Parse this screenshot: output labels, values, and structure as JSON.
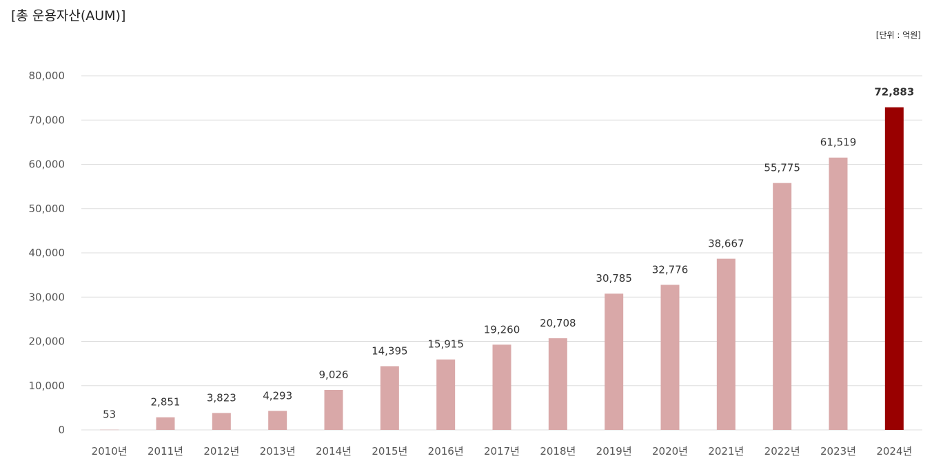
{
  "title": "[총 운용자산(AUM)]",
  "unit_note": "[단위 : 억원]",
  "chart_data": {
    "type": "bar",
    "title": "[총 운용자산(AUM)]",
    "ylabel": "",
    "xlabel": "",
    "unit": "[단위 : 억원]",
    "ylim": [
      0,
      80000
    ],
    "yticks": [
      "0",
      "10,000",
      "20,000",
      "30,000",
      "40,000",
      "50,000",
      "60,000",
      "70,000",
      "80,000"
    ],
    "grid": true,
    "legend": "none",
    "categories": [
      "2010년",
      "2011년",
      "2012년",
      "2013년",
      "2014년",
      "2015년",
      "2016년",
      "2017년",
      "2018년",
      "2019년",
      "2020년",
      "2021년",
      "2022년",
      "2023년",
      "2024년"
    ],
    "values": [
      53,
      2851,
      3823,
      4293,
      9026,
      14395,
      15915,
      19260,
      20708,
      30785,
      32776,
      38667,
      55775,
      61519,
      72883
    ],
    "value_labels": [
      "53",
      "2,851",
      "3,823",
      "4,293",
      "9,026",
      "14,395",
      "15,915",
      "19,260",
      "20,708",
      "30,785",
      "32,776",
      "38,667",
      "55,775",
      "61,519",
      "72,883"
    ],
    "highlight_index": 14,
    "colors": {
      "bar": "#d9a8a8",
      "highlight": "#990000",
      "grid": "#dddddd"
    }
  }
}
